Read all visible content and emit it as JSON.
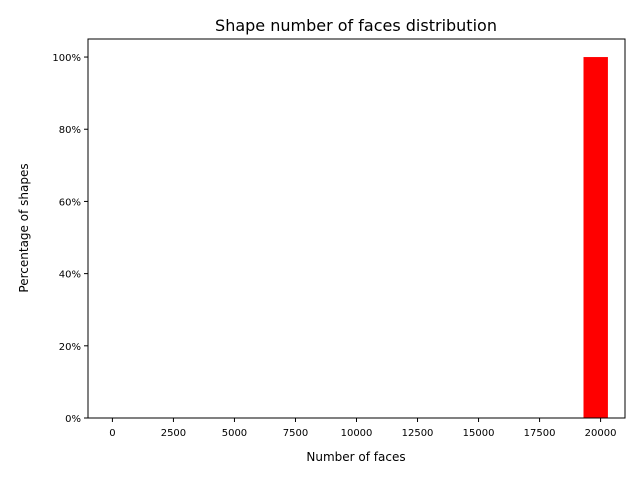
{
  "chart_data": {
    "type": "bar",
    "title": "Shape number of faces distribution",
    "xlabel": "Number of faces",
    "ylabel": "Percentage of shapes",
    "xlim": [
      -1000,
      21000
    ],
    "ylim": [
      0,
      105
    ],
    "xticks": [
      0,
      2500,
      5000,
      7500,
      10000,
      12500,
      15000,
      17500,
      20000
    ],
    "xtick_labels": [
      "0",
      "2500",
      "5000",
      "7500",
      "10000",
      "12500",
      "15000",
      "17500",
      "20000"
    ],
    "yticks": [
      0,
      20,
      40,
      60,
      80,
      100
    ],
    "ytick_labels": [
      "0%",
      "20%",
      "40%",
      "60%",
      "80%",
      "100%"
    ],
    "bars": [
      {
        "x_start": 19300,
        "x_end": 20300,
        "value": 100
      }
    ],
    "bar_color": "#ff0000",
    "grid": false,
    "legend": "none"
  }
}
